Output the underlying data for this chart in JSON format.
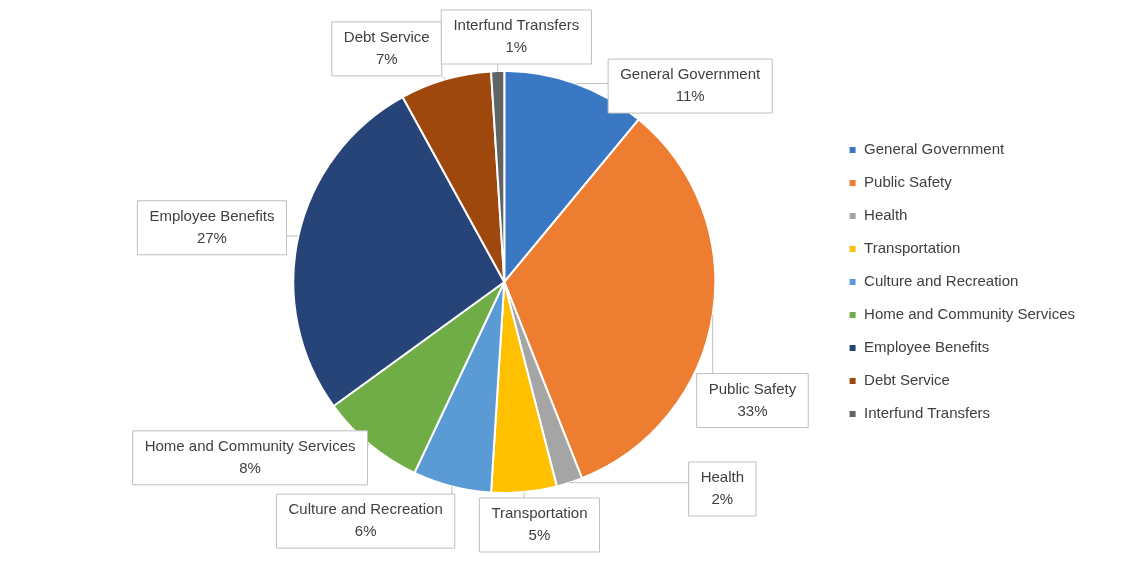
{
  "chart_data": {
    "type": "pie",
    "categories": [
      "General Government",
      "Public Safety",
      "Health",
      "Transportation",
      "Culture and Recreation",
      "Home and Community Services",
      "Employee Benefits",
      "Debt Service",
      "Interfund Transfers"
    ],
    "values": [
      11,
      33,
      2,
      5,
      6,
      8,
      27,
      7,
      1
    ],
    "value_labels": [
      "11%",
      "33%",
      "2%",
      "5%",
      "6%",
      "8%",
      "27%",
      "7%",
      "1%"
    ],
    "colors": [
      "#3a78c3",
      "#ed7d31",
      "#a5a5a5",
      "#ffc000",
      "#5b9bd5",
      "#70ad47",
      "#264478",
      "#9e480e",
      "#636363"
    ],
    "legend": "right"
  }
}
